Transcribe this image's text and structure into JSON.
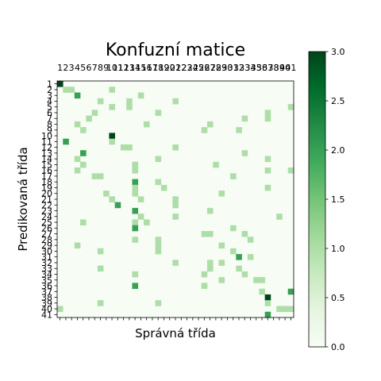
{
  "chart_data": {
    "type": "heatmap",
    "title": "Konfuzní matice",
    "xlabel": "Správná třída",
    "ylabel": "Predikovaná třída",
    "n_classes": 41,
    "x_tick_labels": [
      "1",
      "2",
      "3",
      "4",
      "5",
      "6",
      "7",
      "8",
      "9",
      "10",
      "11",
      "12",
      "13",
      "14",
      "15",
      "16",
      "17",
      "18",
      "19",
      "20",
      "21",
      "22",
      "23",
      "24",
      "25",
      "26",
      "27",
      "28",
      "29",
      "30",
      "31",
      "32",
      "33",
      "34",
      "35",
      "36",
      "37",
      "38",
      "39",
      "40",
      "41"
    ],
    "y_tick_labels": [
      "1",
      "2",
      "3",
      "4",
      "5",
      "6",
      "7",
      "8",
      "9",
      "10",
      "11",
      "12",
      "13",
      "14",
      "15",
      "16",
      "17",
      "18",
      "19",
      "20",
      "21",
      "22",
      "23",
      "24",
      "25",
      "26",
      "27",
      "28",
      "29",
      "30",
      "31",
      "32",
      "33",
      "34",
      "35",
      "36",
      "37",
      "38",
      "39",
      "40",
      "41"
    ],
    "colormap": "Greens",
    "vmin": 0,
    "vmax": 3,
    "colorbar_ticks": [
      "0.0",
      "0.5",
      "1.0",
      "1.5",
      "2.0",
      "2.5",
      "3.0"
    ],
    "cells": [
      {
        "row": 1,
        "col": 1,
        "value": 3
      },
      {
        "row": 2,
        "col": 2,
        "value": 1
      },
      {
        "row": 2,
        "col": 3,
        "value": 1
      },
      {
        "row": 2,
        "col": 10,
        "value": 1
      },
      {
        "row": 3,
        "col": 4,
        "value": 2
      },
      {
        "row": 3,
        "col": 15,
        "value": 1
      },
      {
        "row": 4,
        "col": 8,
        "value": 1
      },
      {
        "row": 4,
        "col": 13,
        "value": 1
      },
      {
        "row": 4,
        "col": 21,
        "value": 1
      },
      {
        "row": 5,
        "col": 10,
        "value": 1
      },
      {
        "row": 5,
        "col": 13,
        "value": 1
      },
      {
        "row": 5,
        "col": 41,
        "value": 1
      },
      {
        "row": 6,
        "col": 7,
        "value": 1
      },
      {
        "row": 6,
        "col": 18,
        "value": 1
      },
      {
        "row": 6,
        "col": 37,
        "value": 1
      },
      {
        "row": 7,
        "col": 6,
        "value": 1
      },
      {
        "row": 7,
        "col": 33,
        "value": 1
      },
      {
        "row": 7,
        "col": 37,
        "value": 1
      },
      {
        "row": 8,
        "col": 4,
        "value": 1
      },
      {
        "row": 8,
        "col": 16,
        "value": 1
      },
      {
        "row": 8,
        "col": 27,
        "value": 1
      },
      {
        "row": 9,
        "col": 5,
        "value": 1
      },
      {
        "row": 9,
        "col": 26,
        "value": 1
      },
      {
        "row": 9,
        "col": 32,
        "value": 1
      },
      {
        "row": 10,
        "col": 10,
        "value": 3
      },
      {
        "row": 11,
        "col": 2,
        "value": 2
      },
      {
        "row": 11,
        "col": 10,
        "value": 1
      },
      {
        "row": 12,
        "col": 12,
        "value": 1
      },
      {
        "row": 12,
        "col": 13,
        "value": 1
      },
      {
        "row": 12,
        "col": 21,
        "value": 1
      },
      {
        "row": 13,
        "col": 5,
        "value": 2
      },
      {
        "row": 13,
        "col": 33,
        "value": 1
      },
      {
        "row": 14,
        "col": 4,
        "value": 1
      },
      {
        "row": 14,
        "col": 18,
        "value": 1
      },
      {
        "row": 14,
        "col": 37,
        "value": 1
      },
      {
        "row": 15,
        "col": 5,
        "value": 1
      },
      {
        "row": 15,
        "col": 14,
        "value": 1
      },
      {
        "row": 15,
        "col": 28,
        "value": 1
      },
      {
        "row": 16,
        "col": 4,
        "value": 1
      },
      {
        "row": 16,
        "col": 14,
        "value": 1
      },
      {
        "row": 16,
        "col": 37,
        "value": 1
      },
      {
        "row": 16,
        "col": 41,
        "value": 1
      },
      {
        "row": 17,
        "col": 7,
        "value": 1
      },
      {
        "row": 17,
        "col": 8,
        "value": 1
      },
      {
        "row": 17,
        "col": 31,
        "value": 1
      },
      {
        "row": 18,
        "col": 14,
        "value": 2
      },
      {
        "row": 18,
        "col": 18,
        "value": 1
      },
      {
        "row": 19,
        "col": 14,
        "value": 1
      },
      {
        "row": 19,
        "col": 19,
        "value": 1
      },
      {
        "row": 19,
        "col": 37,
        "value": 1
      },
      {
        "row": 20,
        "col": 9,
        "value": 1
      },
      {
        "row": 20,
        "col": 14,
        "value": 1
      },
      {
        "row": 20,
        "col": 29,
        "value": 1
      },
      {
        "row": 21,
        "col": 10,
        "value": 1
      },
      {
        "row": 21,
        "col": 15,
        "value": 1
      },
      {
        "row": 21,
        "col": 21,
        "value": 1
      },
      {
        "row": 22,
        "col": 11,
        "value": 2
      },
      {
        "row": 22,
        "col": 21,
        "value": 1
      },
      {
        "row": 23,
        "col": 14,
        "value": 2
      },
      {
        "row": 23,
        "col": 27,
        "value": 1
      },
      {
        "row": 24,
        "col": 15,
        "value": 1
      },
      {
        "row": 24,
        "col": 21,
        "value": 1
      },
      {
        "row": 24,
        "col": 39,
        "value": 1
      },
      {
        "row": 25,
        "col": 5,
        "value": 1
      },
      {
        "row": 25,
        "col": 14,
        "value": 1
      },
      {
        "row": 25,
        "col": 16,
        "value": 1
      },
      {
        "row": 26,
        "col": 14,
        "value": 2
      },
      {
        "row": 26,
        "col": 31,
        "value": 1
      },
      {
        "row": 27,
        "col": 26,
        "value": 1
      },
      {
        "row": 27,
        "col": 27,
        "value": 1
      },
      {
        "row": 27,
        "col": 33,
        "value": 1
      },
      {
        "row": 28,
        "col": 14,
        "value": 1
      },
      {
        "row": 28,
        "col": 18,
        "value": 1
      },
      {
        "row": 28,
        "col": 34,
        "value": 1
      },
      {
        "row": 29,
        "col": 4,
        "value": 1
      },
      {
        "row": 29,
        "col": 18,
        "value": 1
      },
      {
        "row": 29,
        "col": 29,
        "value": 1
      },
      {
        "row": 30,
        "col": 8,
        "value": 1
      },
      {
        "row": 30,
        "col": 18,
        "value": 1
      },
      {
        "row": 30,
        "col": 31,
        "value": 1
      },
      {
        "row": 31,
        "col": 32,
        "value": 2
      },
      {
        "row": 31,
        "col": 34,
        "value": 1
      },
      {
        "row": 32,
        "col": 21,
        "value": 1
      },
      {
        "row": 32,
        "col": 27,
        "value": 1
      },
      {
        "row": 32,
        "col": 29,
        "value": 1
      },
      {
        "row": 33,
        "col": 8,
        "value": 1
      },
      {
        "row": 33,
        "col": 27,
        "value": 1
      },
      {
        "row": 33,
        "col": 32,
        "value": 1
      },
      {
        "row": 34,
        "col": 14,
        "value": 1
      },
      {
        "row": 34,
        "col": 26,
        "value": 1
      },
      {
        "row": 34,
        "col": 33,
        "value": 1
      },
      {
        "row": 35,
        "col": 29,
        "value": 1
      },
      {
        "row": 35,
        "col": 35,
        "value": 1
      },
      {
        "row": 35,
        "col": 36,
        "value": 1
      },
      {
        "row": 36,
        "col": 14,
        "value": 2
      },
      {
        "row": 36,
        "col": 26,
        "value": 1
      },
      {
        "row": 37,
        "col": 36,
        "value": 1
      },
      {
        "row": 37,
        "col": 41,
        "value": 2
      },
      {
        "row": 38,
        "col": 37,
        "value": 3
      },
      {
        "row": 39,
        "col": 8,
        "value": 1
      },
      {
        "row": 39,
        "col": 18,
        "value": 1
      },
      {
        "row": 39,
        "col": 37,
        "value": 1
      },
      {
        "row": 40,
        "col": 1,
        "value": 1
      },
      {
        "row": 40,
        "col": 39,
        "value": 1
      },
      {
        "row": 40,
        "col": 40,
        "value": 1
      },
      {
        "row": 40,
        "col": 41,
        "value": 1
      },
      {
        "row": 41,
        "col": 37,
        "value": 2
      }
    ]
  }
}
